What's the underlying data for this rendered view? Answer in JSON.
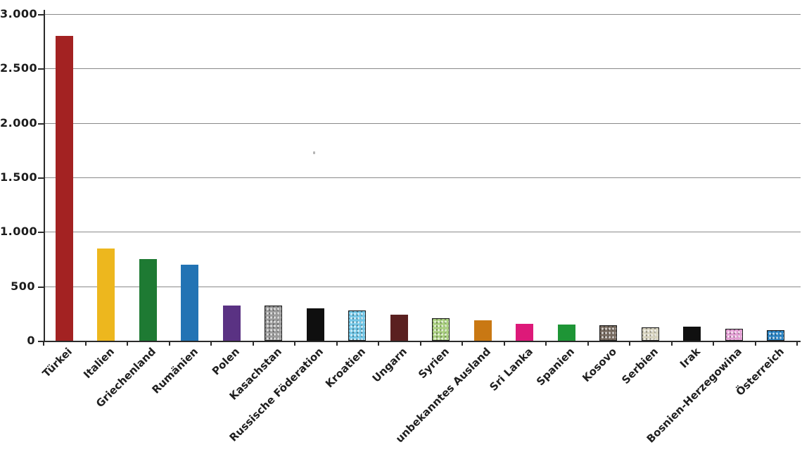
{
  "chart_data": {
    "type": "bar",
    "title": "",
    "xlabel": "",
    "ylabel": "",
    "categories": [
      "Türkei",
      "Italien",
      "Griechenland",
      "Rumänien",
      "Polen",
      "Kasachstan",
      "Russische Föderation",
      "Kroatien",
      "Ungarn",
      "Syrien",
      "unbekanntes Ausland",
      "Sri Lanka",
      "Spanien",
      "Kosovo",
      "Serbien",
      "Irak",
      "Bosnien-Herzegowina",
      "Österreich"
    ],
    "values": [
      2800,
      850,
      750,
      700,
      325,
      325,
      300,
      275,
      240,
      210,
      190,
      155,
      150,
      140,
      120,
      130,
      110,
      100
    ],
    "bar_colors": [
      "#a32222",
      "#edb71e",
      "#1e7a33",
      "#2273b4",
      "#5a3283",
      "#9a9a9a",
      "#0f0f0f",
      "#72c7e7",
      "#5a2020",
      "#a9cf7f",
      "#c97813",
      "#dd1979",
      "#1e9536",
      "#776a5f",
      "#d6d2be",
      "#101010",
      "#e39fd4",
      "#2b84c4"
    ],
    "textured_bars": [
      false,
      false,
      false,
      false,
      false,
      true,
      false,
      true,
      false,
      true,
      false,
      false,
      false,
      true,
      true,
      false,
      true,
      true
    ],
    "ylim": [
      0,
      3000
    ],
    "ytick_values": [
      0,
      500,
      1000,
      1500,
      2000,
      2500,
      3000
    ],
    "ytick_labels": [
      "0",
      "500",
      "1.000",
      "1.500",
      "2.000",
      "2.500",
      "3.000"
    ],
    "grid": true,
    "legend": "none",
    "axis_color": "#2b2b2b",
    "grid_color": "#8a8a8a",
    "label_color": "#1f1f1f",
    "background_color": "#ffffff"
  }
}
